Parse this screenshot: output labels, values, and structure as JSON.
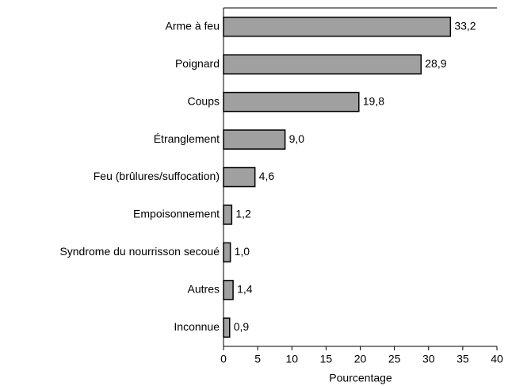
{
  "chart_data": {
    "type": "bar",
    "orientation": "horizontal",
    "categories": [
      "Arme à feu",
      "Poignard",
      "Coups",
      "Étranglement",
      "Feu (brûlures/suffocation)",
      "Empoisonnement",
      "Syndrome du nourrisson secoué",
      "Autres",
      "Inconnue"
    ],
    "values": [
      33.2,
      28.9,
      19.8,
      9.0,
      4.6,
      1.2,
      1.0,
      1.4,
      0.9
    ],
    "value_labels": [
      "33,2",
      "28,9",
      "19,8",
      "9,0",
      "4,6",
      "1,2",
      "1,0",
      "1,4",
      "0,9"
    ],
    "color": "#a0a0a0",
    "xlabel": "Pourcentage",
    "xlim": [
      0,
      40
    ],
    "xticks": [
      0,
      5,
      10,
      15,
      20,
      25,
      30,
      35,
      40
    ]
  }
}
